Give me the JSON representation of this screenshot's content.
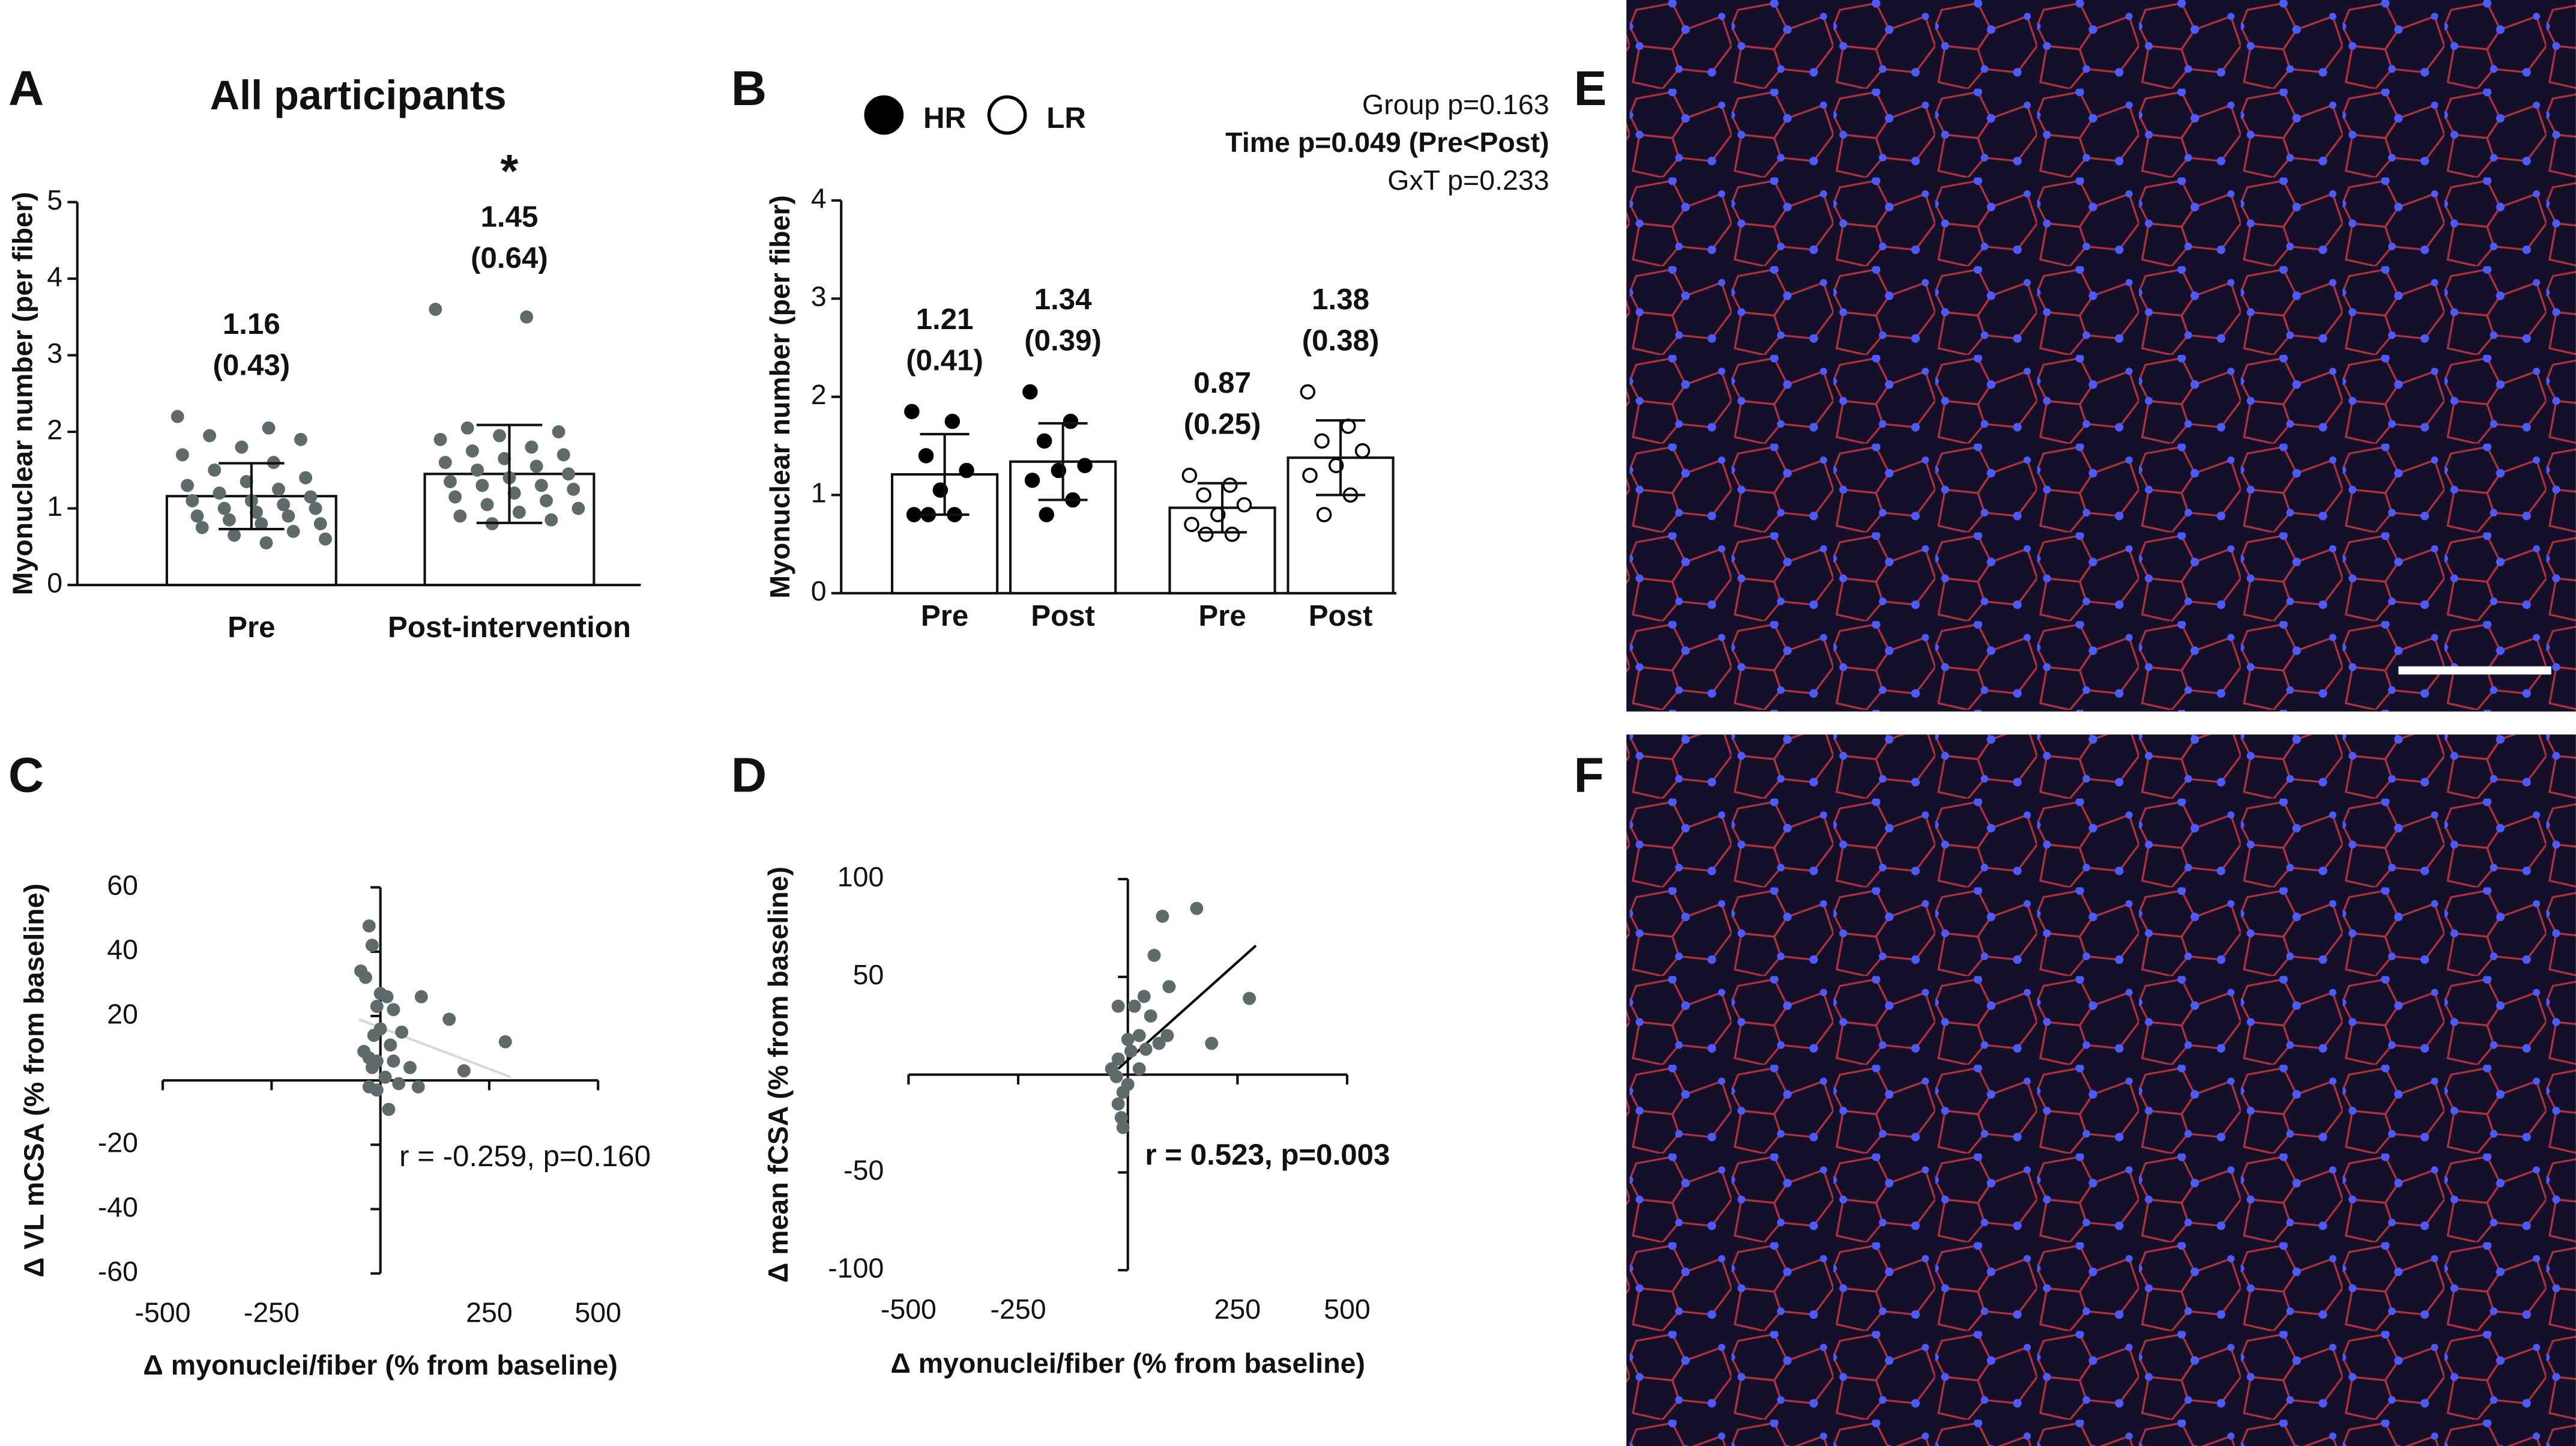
{
  "chart_data": [
    {
      "type": "bar",
      "panel": "A",
      "title": "All participants",
      "ylabel": "Myonuclear number (per fiber)",
      "categories": [
        "Pre",
        "Post-intervention"
      ],
      "values": [
        1.16,
        1.45
      ],
      "errors": [
        0.43,
        0.64
      ],
      "error_labels": [
        "(0.43)",
        "(0.64)"
      ],
      "significance": [
        null,
        "*"
      ],
      "bar_color": "#ffffff",
      "point_color": "#5f6b6b",
      "points": [
        [
          2.2,
          2.05,
          1.95,
          1.9,
          1.8,
          1.7,
          1.6,
          1.5,
          1.4,
          1.35,
          1.3,
          1.25,
          1.2,
          1.15,
          1.1,
          1.1,
          1.05,
          1.0,
          1.0,
          0.95,
          0.9,
          0.9,
          0.85,
          0.8,
          0.8,
          0.75,
          0.7,
          0.65,
          0.6,
          0.55
        ],
        [
          3.6,
          3.5,
          2.05,
          2.0,
          1.95,
          1.9,
          1.8,
          1.75,
          1.7,
          1.65,
          1.6,
          1.55,
          1.5,
          1.45,
          1.4,
          1.35,
          1.3,
          1.3,
          1.25,
          1.2,
          1.15,
          1.1,
          1.05,
          1.0,
          0.95,
          0.9,
          0.85,
          0.8
        ]
      ],
      "ylim": [
        0,
        5
      ],
      "yticks": [
        0,
        1,
        2,
        3,
        4,
        5
      ]
    },
    {
      "type": "bar",
      "panel": "B",
      "ylabel": "Myonuclear number (per fiber)",
      "bar_color": "#ffffff",
      "series": [
        {
          "name": "HR",
          "point_fill": "#000000",
          "categories": [
            "Pre",
            "Post"
          ],
          "values": [
            1.21,
            1.34
          ],
          "errors": [
            0.41,
            0.39
          ],
          "error_labels": [
            "(0.41)",
            "(0.39)"
          ],
          "points": [
            [
              1.85,
              1.75,
              1.4,
              1.25,
              1.05,
              0.8,
              0.8,
              0.8
            ],
            [
              2.05,
              1.75,
              1.55,
              1.3,
              1.25,
              1.15,
              0.95,
              0.8
            ]
          ]
        },
        {
          "name": "LR",
          "point_fill": "#ffffff",
          "categories": [
            "Pre",
            "Post"
          ],
          "values": [
            0.87,
            1.38
          ],
          "errors": [
            0.25,
            0.38
          ],
          "error_labels": [
            "(0.25)",
            "(0.38)"
          ],
          "points": [
            [
              1.2,
              1.1,
              1.0,
              0.9,
              0.8,
              0.7,
              0.6,
              0.6
            ],
            [
              2.05,
              1.7,
              1.55,
              1.45,
              1.3,
              1.2,
              1.0,
              0.8
            ]
          ]
        }
      ],
      "annotations": [
        {
          "text": "Group p=0.163",
          "bold": false
        },
        {
          "text": "Time p=0.049 (Pre<Post)",
          "bold": true
        },
        {
          "text": "GxT p=0.233",
          "bold": false
        }
      ],
      "ylim": [
        0,
        4
      ],
      "yticks": [
        0,
        1,
        2,
        3,
        4
      ]
    },
    {
      "type": "scatter",
      "panel": "C",
      "xlabel": "Δ myonuclei/fiber (% from baseline)",
      "ylabel": "Δ VL mCSA (% from baseline)",
      "annotation": {
        "text": "r = -0.259, p=0.160",
        "bold": false
      },
      "color": "#5f6b6b",
      "fit_color": "#d8d8d8",
      "x": [
        -26,
        -19,
        -45,
        -34,
        0,
        15,
        -8,
        30,
        94,
        158,
        287,
        49,
        0,
        -15,
        23,
        -38,
        -26,
        -8,
        30,
        68,
        192,
        -19,
        11,
        -26,
        42,
        87,
        19,
        -8
      ],
      "y": [
        48,
        42,
        34,
        32,
        27,
        26,
        23,
        22,
        26,
        19,
        12,
        15,
        16,
        14,
        11,
        9,
        7,
        6,
        6,
        4,
        3,
        4,
        1,
        -2,
        -1,
        -2,
        -9,
        -3
      ],
      "fit": {
        "x": [
          -50,
          300
        ],
        "y": [
          19,
          1
        ]
      },
      "xlim": [
        -500,
        500
      ],
      "xticks": [
        -500,
        -250,
        250,
        500
      ],
      "ylim": [
        -60,
        60
      ],
      "yticks": [
        -60,
        -40,
        -20,
        20,
        40,
        60
      ]
    },
    {
      "type": "scatter",
      "panel": "D",
      "xlabel": "Δ myonuclei/fiber (% from baseline)",
      "ylabel": "Δ mean fCSA (% from baseline)",
      "annotation": {
        "text": "r = 0.523, p=0.003",
        "bold": true
      },
      "color": "#5f6b6b",
      "fit_color": "#000000",
      "x": [
        157,
        79,
        60,
        277,
        94,
        37,
        -22,
        15,
        52,
        191,
        90,
        26,
        0,
        71,
        41,
        7,
        -22,
        -37,
        26,
        -26,
        0,
        -11,
        -22,
        -15,
        -11
      ],
      "y": [
        85,
        81,
        61,
        39,
        45,
        40,
        35,
        35,
        30,
        16,
        20,
        20,
        18,
        16,
        13,
        12,
        8,
        3,
        3,
        -1,
        -5,
        -9,
        -15,
        -22,
        -27
      ],
      "fit": {
        "x": [
          -22,
          292
        ],
        "y": [
          3,
          66
        ]
      },
      "xlim": [
        -500,
        500
      ],
      "xticks": [
        -500,
        -250,
        250,
        500
      ],
      "ylim": [
        -100,
        100
      ],
      "yticks": [
        -100,
        -50,
        50,
        100
      ]
    }
  ],
  "images": [
    {
      "panel": "E"
    },
    {
      "panel": "F"
    }
  ]
}
